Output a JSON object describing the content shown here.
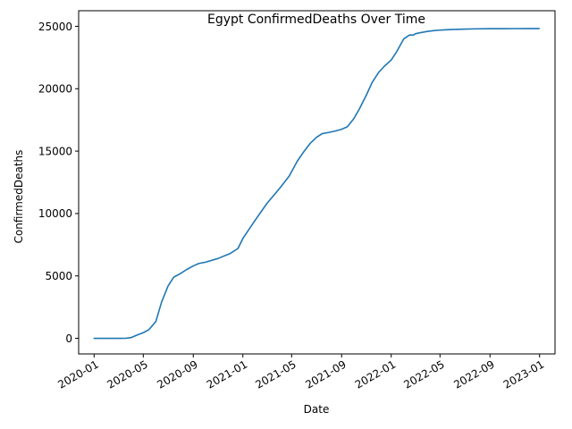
{
  "chart_data": {
    "type": "line",
    "title": "Egypt  ConfirmedDeaths Over Time",
    "xlabel": "Date",
    "ylabel": "ConfirmedDeaths",
    "x_ticks": [
      "2020-01",
      "2020-05",
      "2020-09",
      "2021-01",
      "2021-05",
      "2021-09",
      "2022-01",
      "2022-05",
      "2022-09",
      "2023-01"
    ],
    "y_ticks": [
      0,
      5000,
      10000,
      15000,
      20000,
      25000
    ],
    "xlim": [
      "2019-11-24",
      "2023-02-08"
    ],
    "ylim": [
      -1250,
      26250
    ],
    "grid": false,
    "color": "#1f77b4",
    "series": [
      {
        "x": [
          "2020-01-01",
          "2020-02-01",
          "2020-03-01",
          "2020-03-20",
          "2020-04-01",
          "2020-04-15",
          "2020-05-01",
          "2020-05-15",
          "2020-06-01",
          "2020-06-15",
          "2020-07-01",
          "2020-07-15",
          "2020-08-01",
          "2020-08-15",
          "2020-09-01",
          "2020-09-15",
          "2020-10-01",
          "2020-11-01",
          "2020-12-01",
          "2020-12-20",
          "2021-01-01",
          "2021-02-01",
          "2021-03-01",
          "2021-04-01",
          "2021-04-25",
          "2021-05-15",
          "2021-06-01",
          "2021-06-15",
          "2021-07-01",
          "2021-07-15",
          "2021-08-01",
          "2021-08-15",
          "2021-09-01",
          "2021-09-15",
          "2021-10-01",
          "2021-10-15",
          "2021-11-01",
          "2021-11-15",
          "2021-12-01",
          "2021-12-15",
          "2022-01-01",
          "2022-01-15",
          "2022-02-01",
          "2022-02-15",
          "2022-02-25",
          "2022-03-01",
          "2022-03-15",
          "2022-04-01",
          "2022-04-15",
          "2022-05-01",
          "2022-06-01",
          "2022-07-01",
          "2022-08-01",
          "2022-09-01",
          "2022-10-01",
          "2022-11-01",
          "2022-12-01",
          "2022-12-31"
        ],
        "y": [
          0,
          0,
          0,
          10,
          60,
          250,
          450,
          700,
          1350,
          2900,
          4200,
          4900,
          5200,
          5500,
          5800,
          6000,
          6100,
          6400,
          6800,
          7200,
          8000,
          9500,
          10800,
          12000,
          13000,
          14200,
          15000,
          15600,
          16100,
          16400,
          16500,
          16600,
          16750,
          16950,
          17600,
          18400,
          19500,
          20500,
          21300,
          21800,
          22300,
          23000,
          24000,
          24300,
          24300,
          24400,
          24500,
          24600,
          24650,
          24700,
          24750,
          24780,
          24800,
          24810,
          24815,
          24818,
          24820,
          24820
        ]
      }
    ]
  }
}
